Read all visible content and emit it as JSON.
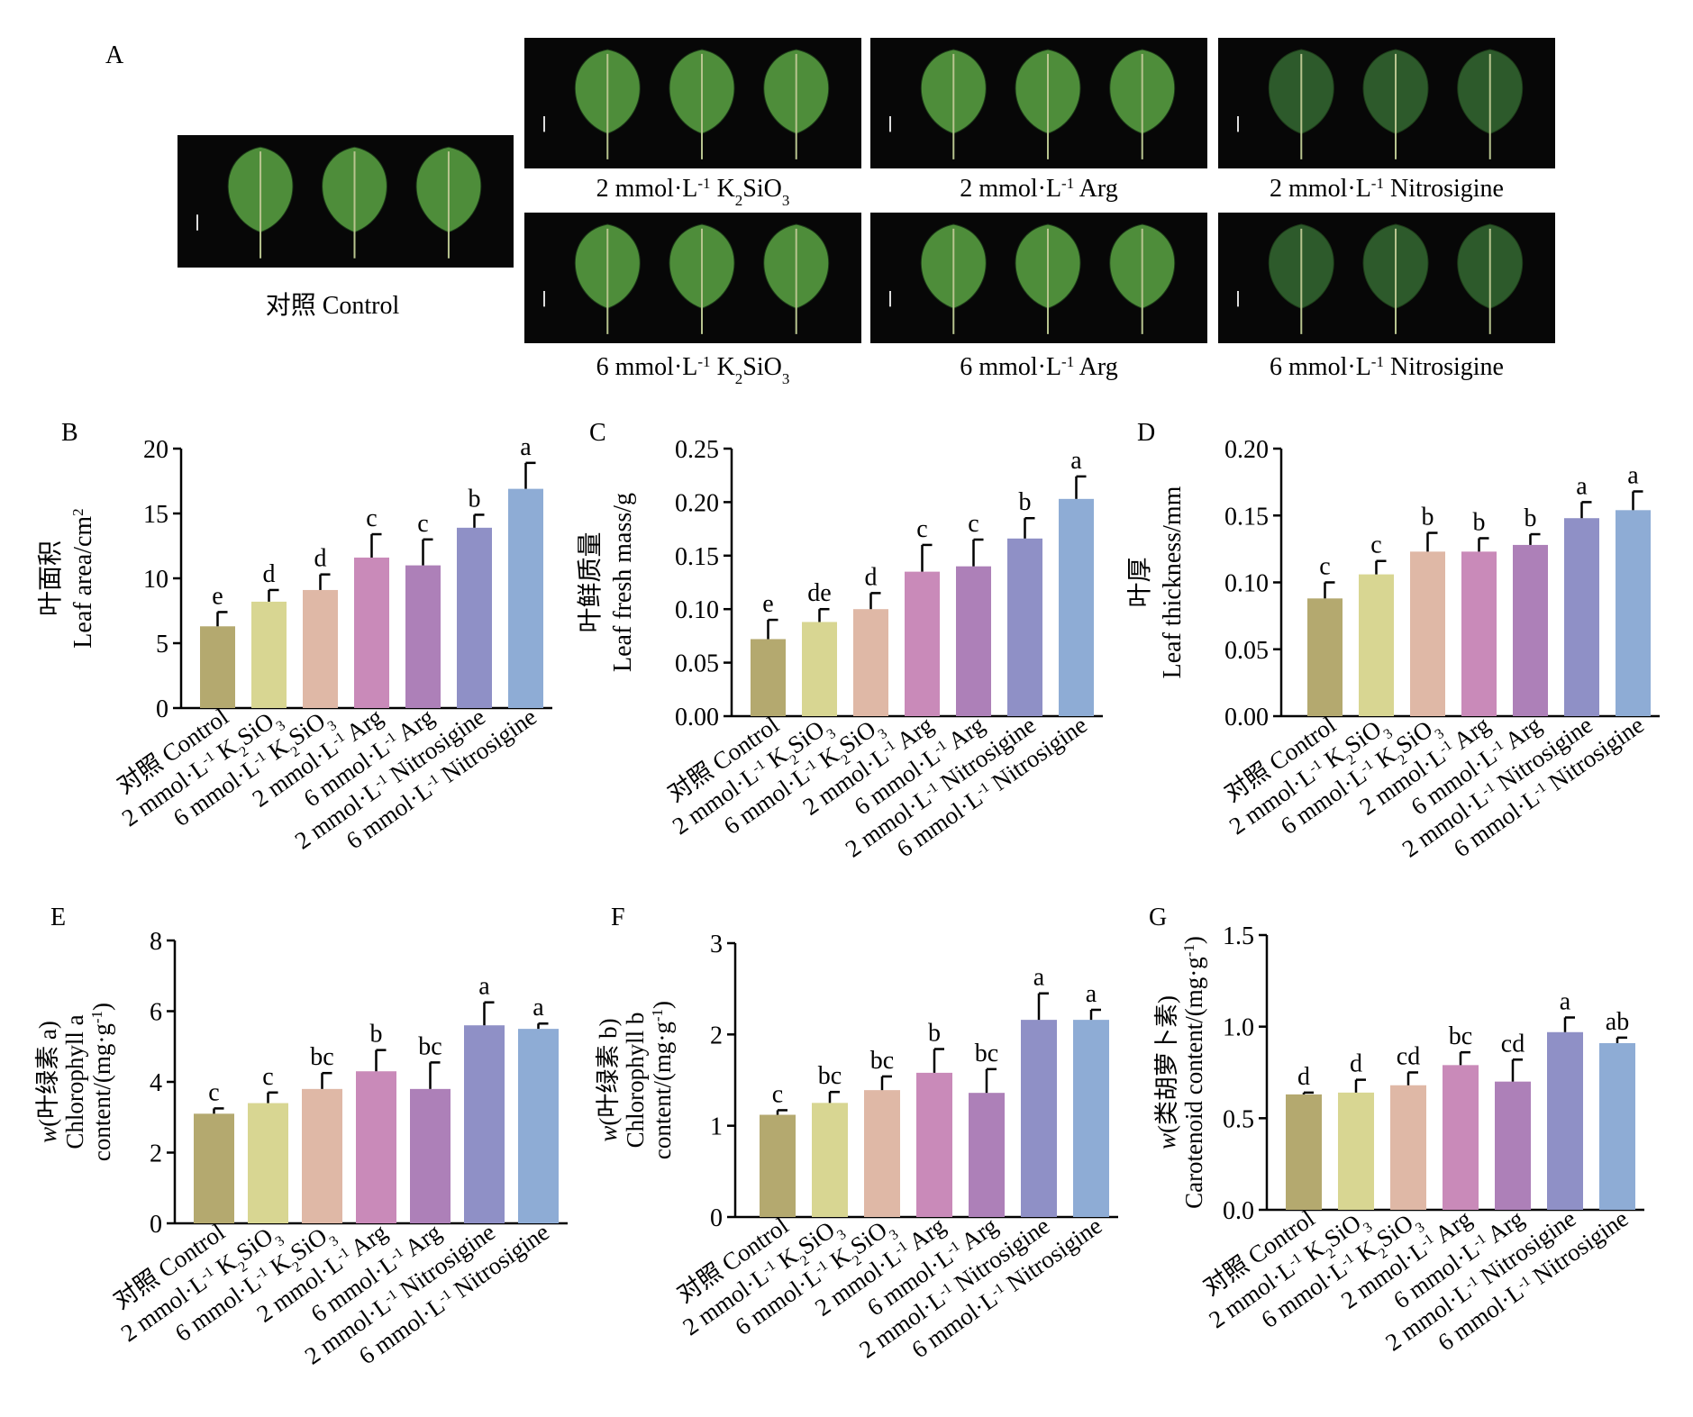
{
  "panel_a": {
    "letter": "A",
    "control_label": "对照 Control",
    "photo_labels": [
      {
        "amount": "2 mmol",
        "unit": "L",
        "exp": "-1",
        "agent": "K",
        "agent_sub": "2",
        "agent_rest": "SiO",
        "agent_sub2": "3"
      },
      {
        "amount": "2 mmol",
        "unit": "L",
        "exp": "-1",
        "agent": "Arg"
      },
      {
        "amount": "2 mmol",
        "unit": "L",
        "exp": "-1",
        "agent": "Nitrosigine"
      },
      {
        "amount": "6 mmol",
        "unit": "L",
        "exp": "-1",
        "agent": "K",
        "agent_sub": "2",
        "agent_rest": "SiO",
        "agent_sub2": "3"
      },
      {
        "amount": "6 mmol",
        "unit": "L",
        "exp": "-1",
        "agent": "Arg"
      },
      {
        "amount": "6 mmol",
        "unit": "L",
        "exp": "-1",
        "agent": "Nitrosigine"
      }
    ]
  },
  "colors": {
    "control": "#b4a96f",
    "k2sio3_2": "#d8d692",
    "k2sio3_6": "#dfb8a6",
    "arg_2": "#c98ab9",
    "arg_6": "#ad80b8",
    "nitro_2": "#8f90c6",
    "nitro_6": "#8eacd5",
    "leaf_light": "#4e8d3a",
    "leaf_dark": "#2d5a2b"
  },
  "x_tick_labels": [
    {
      "text": "对照 Control"
    },
    {
      "pre": "2 mmol·L",
      "sup": "-1",
      "post": " K",
      "sub": "2",
      "post2": "SiO",
      "sub2": "3"
    },
    {
      "pre": "6 mmol·L",
      "sup": "-1",
      "post": " K",
      "sub": "2",
      "post2": "SiO",
      "sub2": "3"
    },
    {
      "pre": "2 mmol·L",
      "sup": "-1",
      "post": " Arg"
    },
    {
      "pre": "6 mmol·L",
      "sup": "-1",
      "post": " Arg"
    },
    {
      "pre": "2 mmol·L",
      "sup": "-1",
      "post": " Nitrosigine"
    },
    {
      "pre": "6 mmol·L",
      "sup": "-1",
      "post": " Nitrosigine"
    }
  ],
  "chart_data": [
    {
      "id": "B",
      "type": "bar",
      "title": "",
      "ylabel_cn": "叶面积",
      "ylabel_en": "Leaf area/cm",
      "ylabel_sup": "2",
      "ylim": [
        0,
        20
      ],
      "yticks": [
        "0",
        "5",
        "10",
        "15",
        "20"
      ],
      "values": [
        6.3,
        8.2,
        9.1,
        11.6,
        11.0,
        13.9,
        16.9
      ],
      "errors": [
        1.1,
        0.9,
        1.2,
        1.8,
        2.0,
        1.0,
        2.0
      ],
      "letters": [
        "e",
        "d",
        "d",
        "c",
        "c",
        "b",
        "a"
      ]
    },
    {
      "id": "C",
      "type": "bar",
      "title": "",
      "ylabel_cn": "叶鲜质量",
      "ylabel_en": "Leaf fresh mass/g",
      "ylim": [
        0,
        0.25
      ],
      "yticks": [
        "0.00",
        "0.05",
        "0.10",
        "0.15",
        "0.20",
        "0.25"
      ],
      "values": [
        0.072,
        0.088,
        0.1,
        0.135,
        0.14,
        0.166,
        0.203
      ],
      "errors": [
        0.018,
        0.012,
        0.015,
        0.025,
        0.025,
        0.019,
        0.021
      ],
      "letters": [
        "e",
        "de",
        "d",
        "c",
        "c",
        "b",
        "a"
      ]
    },
    {
      "id": "D",
      "type": "bar",
      "title": "",
      "ylabel_cn": "叶厚",
      "ylabel_en": "Leaf thickness/mm",
      "ylim": [
        0,
        0.2
      ],
      "yticks": [
        "0.00",
        "0.05",
        "0.10",
        "0.15",
        "0.20"
      ],
      "values": [
        0.088,
        0.106,
        0.123,
        0.123,
        0.128,
        0.148,
        0.154
      ],
      "errors": [
        0.012,
        0.01,
        0.014,
        0.01,
        0.008,
        0.012,
        0.014
      ],
      "letters": [
        "c",
        "c",
        "b",
        "b",
        "b",
        "a",
        "a"
      ]
    },
    {
      "id": "E",
      "type": "bar",
      "title": "",
      "ylabel_pre": "w",
      "ylabel_cn": "(叶绿素 a)",
      "ylabel_en": "Chlorophyll a",
      "ylabel_en2": "content/(mg·g",
      "ylabel_sup": "-1",
      "ylabel_end": ")",
      "ylim": [
        0,
        8
      ],
      "yticks": [
        "0",
        "2",
        "4",
        "6",
        "8"
      ],
      "values": [
        3.1,
        3.4,
        3.8,
        4.3,
        3.8,
        5.6,
        5.5
      ],
      "errors": [
        0.15,
        0.3,
        0.45,
        0.6,
        0.75,
        0.65,
        0.15
      ],
      "letters": [
        "c",
        "c",
        "bc",
        "b",
        "bc",
        "a",
        "a"
      ]
    },
    {
      "id": "F",
      "type": "bar",
      "title": "",
      "ylabel_pre": "w",
      "ylabel_cn": "(叶绿素 b)",
      "ylabel_en": "Chlorophyll b",
      "ylabel_en2": "content/(mg·g",
      "ylabel_sup": "-1",
      "ylabel_end": ")",
      "ylim": [
        0,
        3
      ],
      "yticks": [
        "0",
        "1",
        "2",
        "3"
      ],
      "values": [
        1.12,
        1.25,
        1.39,
        1.58,
        1.36,
        2.16,
        2.16
      ],
      "errors": [
        0.05,
        0.12,
        0.15,
        0.26,
        0.26,
        0.29,
        0.11
      ],
      "letters": [
        "c",
        "bc",
        "bc",
        "b",
        "bc",
        "a",
        "a"
      ]
    },
    {
      "id": "G",
      "type": "bar",
      "title": "",
      "ylabel_pre": "w",
      "ylabel_cn": "(类胡萝卜素)",
      "ylabel_en2": "Carotenoid content/(mg·g",
      "ylabel_sup": "-1",
      "ylabel_end": ")",
      "ylim": [
        0,
        1.5
      ],
      "yticks": [
        "0.0",
        "0.5",
        "1.0",
        "1.5"
      ],
      "values": [
        0.63,
        0.64,
        0.68,
        0.79,
        0.7,
        0.97,
        0.91
      ],
      "errors": [
        0.01,
        0.07,
        0.07,
        0.07,
        0.12,
        0.08,
        0.03
      ],
      "letters": [
        "d",
        "d",
        "cd",
        "bc",
        "cd",
        "a",
        "ab"
      ]
    }
  ]
}
